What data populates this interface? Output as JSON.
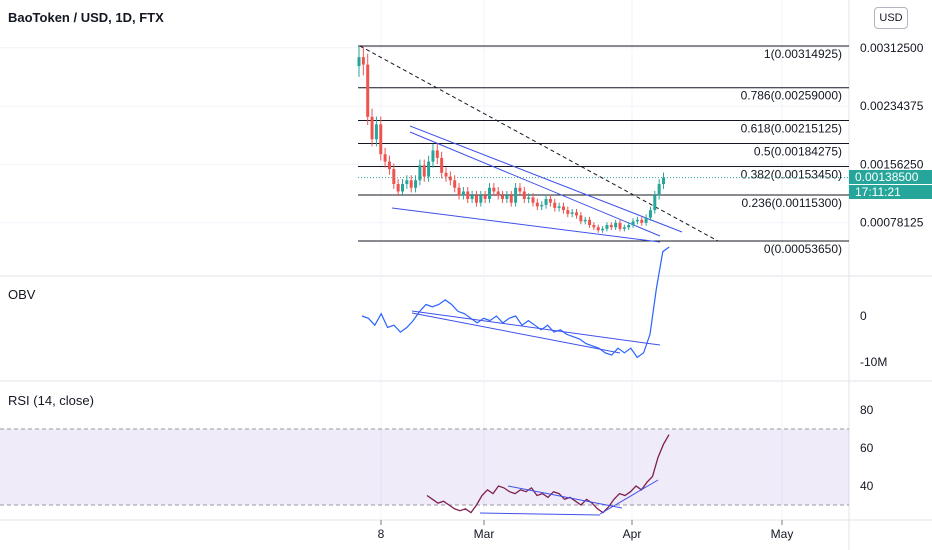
{
  "header": {
    "symbol_title": "BaoToken / USD, 1D, FTX",
    "currency_button": "USD"
  },
  "price_tag": {
    "price": "0.00138500",
    "countdown": "17:11:21",
    "color": "#26a69a"
  },
  "chart_data": [
    {
      "type": "candlestick",
      "title": "BaoToken / USD, 1D, FTX",
      "y_ticks": [
        "0.00312500",
        "0.00234375",
        "0.00156250",
        "0.00078125"
      ],
      "x_ticks": [
        "8",
        "Mar",
        "Apr",
        "May"
      ],
      "fib_levels": [
        {
          "label": "1(0.00314925)",
          "value": 0.00314925
        },
        {
          "label": "0.786(0.00259000)",
          "value": 0.00259
        },
        {
          "label": "0.618(0.00215125)",
          "value": 0.00215125
        },
        {
          "label": "0.5(0.00184275)",
          "value": 0.00184275
        },
        {
          "label": "0.382(0.00153450)",
          "value": 0.0015345
        },
        {
          "label": "0.236(0.00115300)",
          "value": 0.001153
        },
        {
          "label": "0(0.00053650)",
          "value": 0.0005365
        }
      ],
      "last_price": 0.001385,
      "colors": {
        "up": "#26a69a",
        "down": "#ef5350",
        "trendline": "#3f51ea"
      },
      "close": [
        0.003,
        0.0029,
        0.0022,
        0.0019,
        0.0021,
        0.0017,
        0.0016,
        0.0015,
        0.0013,
        0.0012,
        0.0013,
        0.00135,
        0.00125,
        0.00135,
        0.00155,
        0.0014,
        0.0016,
        0.00175,
        0.00165,
        0.00145,
        0.0014,
        0.00135,
        0.00125,
        0.00115,
        0.0012,
        0.0011,
        0.00115,
        0.00105,
        0.00115,
        0.0011,
        0.00125,
        0.0012,
        0.00115,
        0.0011,
        0.00115,
        0.00105,
        0.00125,
        0.0012,
        0.0011,
        0.00112,
        0.00105,
        0.001,
        0.00102,
        0.0011,
        0.00105,
        0.00098,
        0.001,
        0.00095,
        0.0009,
        0.00092,
        0.00088,
        0.0008,
        0.00082,
        0.00075,
        0.00072,
        0.00068,
        0.0007,
        0.00075,
        0.00072,
        0.00078,
        0.0007,
        0.00072,
        0.00075,
        0.0008,
        0.00082,
        0.00078,
        0.00085,
        0.00095,
        0.00115,
        0.0013,
        0.001385
      ]
    },
    {
      "type": "line",
      "title": "OBV",
      "y_ticks": [
        "0",
        "-10M"
      ],
      "values": [
        0.0,
        -0.5,
        -2,
        0.5,
        -2.5,
        -2,
        -3.5,
        -2.5,
        -1,
        1,
        2.5,
        2,
        2.5,
        3.5,
        2.5,
        1,
        0.5,
        -0.5,
        -1.5,
        -0.5,
        -1,
        0,
        -1.5,
        -0.5,
        0,
        -2,
        -1,
        -2,
        -3,
        -2,
        -3.5,
        -3,
        -4,
        -4.5,
        -5,
        -6,
        -6.5,
        -7,
        -8,
        -8.5,
        -7,
        -8,
        -7,
        -9,
        -8,
        -4,
        6,
        14,
        15
      ]
    },
    {
      "type": "line",
      "title": "RSI (14, close)",
      "y_ticks": [
        "80",
        "60",
        "40"
      ],
      "band": [
        30,
        70
      ],
      "values": [
        35,
        33,
        31,
        32,
        30,
        28,
        27,
        28,
        26,
        30,
        35,
        38,
        36,
        40,
        39,
        37,
        36,
        38,
        37,
        39,
        35,
        36,
        34,
        37,
        36,
        33,
        34,
        32,
        30,
        33,
        31,
        28,
        26,
        29,
        33,
        36,
        35,
        37,
        40,
        38,
        42,
        45,
        55,
        62,
        67
      ]
    }
  ],
  "time_axis": [
    "8",
    "Mar",
    "Apr",
    "May"
  ]
}
